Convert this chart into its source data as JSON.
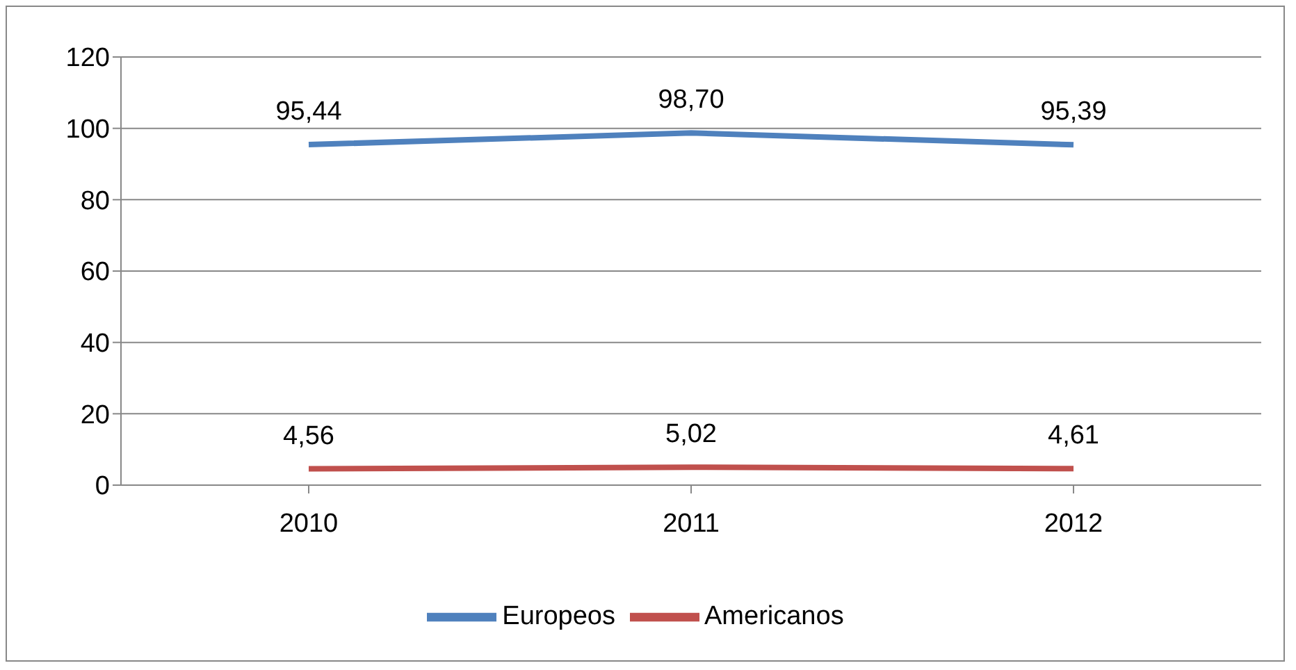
{
  "chart_data": {
    "type": "line",
    "categories": [
      "2010",
      "2011",
      "2012"
    ],
    "series": [
      {
        "name": "Europeos",
        "color": "#4f81bd",
        "values": [
          95.44,
          98.7,
          95.39
        ],
        "value_labels": [
          "95,44",
          "98,70",
          "95,39"
        ]
      },
      {
        "name": "Americanos",
        "color": "#c0504d",
        "values": [
          4.56,
          5.02,
          4.61
        ],
        "value_labels": [
          "4,56",
          "5,02",
          "4,61"
        ]
      }
    ],
    "ylim": [
      0,
      120
    ],
    "yticks": [
      0,
      20,
      40,
      60,
      80,
      100,
      120
    ],
    "grid": "y",
    "legend": "bottom"
  }
}
